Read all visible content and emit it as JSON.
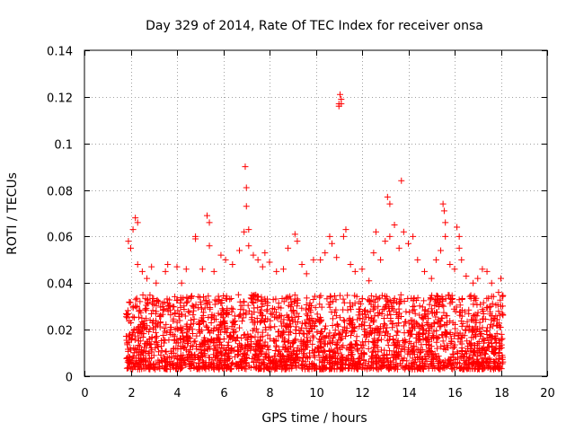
{
  "chart_data": {
    "type": "scatter",
    "title": "Day 329 of 2014, Rate Of TEC Index for receiver onsa",
    "xlabel": "GPS time / hours",
    "ylabel": "ROTI / TECUs",
    "xlim": [
      0,
      20
    ],
    "ylim": [
      0,
      0.14
    ],
    "xticks": [
      "0",
      "2",
      "4",
      "6",
      "8",
      "10",
      "12",
      "14",
      "16",
      "18",
      "20"
    ],
    "yticks": [
      "0",
      "0.02",
      "0.04",
      "0.06",
      "0.08",
      "0.1",
      "0.12",
      "0.14"
    ],
    "grid": true,
    "marker": "plus",
    "color": "#ff0000",
    "x_range_of_data": [
      1.8,
      18.1
    ],
    "baseline_band": [
      0.003,
      0.035
    ],
    "spikes": [
      {
        "x": 1.9,
        "y": 0.058
      },
      {
        "x": 2.0,
        "y": 0.055
      },
      {
        "x": 2.1,
        "y": 0.063
      },
      {
        "x": 2.2,
        "y": 0.068
      },
      {
        "x": 2.3,
        "y": 0.066
      },
      {
        "x": 2.3,
        "y": 0.048
      },
      {
        "x": 2.5,
        "y": 0.045
      },
      {
        "x": 2.7,
        "y": 0.042
      },
      {
        "x": 2.9,
        "y": 0.047
      },
      {
        "x": 3.1,
        "y": 0.04
      },
      {
        "x": 3.5,
        "y": 0.045
      },
      {
        "x": 3.6,
        "y": 0.048
      },
      {
        "x": 4.0,
        "y": 0.047
      },
      {
        "x": 4.2,
        "y": 0.04
      },
      {
        "x": 4.4,
        "y": 0.046
      },
      {
        "x": 4.8,
        "y": 0.06
      },
      {
        "x": 4.8,
        "y": 0.059
      },
      {
        "x": 5.1,
        "y": 0.046
      },
      {
        "x": 5.3,
        "y": 0.069
      },
      {
        "x": 5.4,
        "y": 0.066
      },
      {
        "x": 5.4,
        "y": 0.056
      },
      {
        "x": 5.6,
        "y": 0.045
      },
      {
        "x": 5.9,
        "y": 0.052
      },
      {
        "x": 6.1,
        "y": 0.05
      },
      {
        "x": 6.4,
        "y": 0.048
      },
      {
        "x": 6.7,
        "y": 0.054
      },
      {
        "x": 6.9,
        "y": 0.062
      },
      {
        "x": 6.95,
        "y": 0.09
      },
      {
        "x": 7.0,
        "y": 0.081
      },
      {
        "x": 7.0,
        "y": 0.073
      },
      {
        "x": 7.1,
        "y": 0.063
      },
      {
        "x": 7.1,
        "y": 0.056
      },
      {
        "x": 7.3,
        "y": 0.052
      },
      {
        "x": 7.5,
        "y": 0.05
      },
      {
        "x": 7.7,
        "y": 0.047
      },
      {
        "x": 7.8,
        "y": 0.053
      },
      {
        "x": 8.0,
        "y": 0.049
      },
      {
        "x": 8.3,
        "y": 0.045
      },
      {
        "x": 8.6,
        "y": 0.046
      },
      {
        "x": 8.8,
        "y": 0.055
      },
      {
        "x": 9.1,
        "y": 0.061
      },
      {
        "x": 9.2,
        "y": 0.058
      },
      {
        "x": 9.4,
        "y": 0.048
      },
      {
        "x": 9.6,
        "y": 0.044
      },
      {
        "x": 9.9,
        "y": 0.05
      },
      {
        "x": 10.2,
        "y": 0.05
      },
      {
        "x": 10.4,
        "y": 0.053
      },
      {
        "x": 10.6,
        "y": 0.06
      },
      {
        "x": 10.7,
        "y": 0.057
      },
      {
        "x": 10.9,
        "y": 0.051
      },
      {
        "x": 11.0,
        "y": 0.117
      },
      {
        "x": 11.0,
        "y": 0.116
      },
      {
        "x": 11.05,
        "y": 0.121
      },
      {
        "x": 11.1,
        "y": 0.119
      },
      {
        "x": 11.1,
        "y": 0.117
      },
      {
        "x": 11.2,
        "y": 0.06
      },
      {
        "x": 11.3,
        "y": 0.063
      },
      {
        "x": 11.5,
        "y": 0.048
      },
      {
        "x": 11.7,
        "y": 0.045
      },
      {
        "x": 12.0,
        "y": 0.046
      },
      {
        "x": 12.3,
        "y": 0.041
      },
      {
        "x": 12.5,
        "y": 0.053
      },
      {
        "x": 12.6,
        "y": 0.062
      },
      {
        "x": 12.8,
        "y": 0.05
      },
      {
        "x": 13.0,
        "y": 0.058
      },
      {
        "x": 13.1,
        "y": 0.077
      },
      {
        "x": 13.2,
        "y": 0.074
      },
      {
        "x": 13.2,
        "y": 0.06
      },
      {
        "x": 13.4,
        "y": 0.065
      },
      {
        "x": 13.6,
        "y": 0.055
      },
      {
        "x": 13.7,
        "y": 0.084
      },
      {
        "x": 13.8,
        "y": 0.062
      },
      {
        "x": 14.0,
        "y": 0.057
      },
      {
        "x": 14.2,
        "y": 0.06
      },
      {
        "x": 14.4,
        "y": 0.05
      },
      {
        "x": 14.7,
        "y": 0.045
      },
      {
        "x": 15.0,
        "y": 0.042
      },
      {
        "x": 15.2,
        "y": 0.05
      },
      {
        "x": 15.4,
        "y": 0.054
      },
      {
        "x": 15.5,
        "y": 0.074
      },
      {
        "x": 15.55,
        "y": 0.071
      },
      {
        "x": 15.6,
        "y": 0.066
      },
      {
        "x": 15.6,
        "y": 0.06
      },
      {
        "x": 15.8,
        "y": 0.048
      },
      {
        "x": 16.0,
        "y": 0.046
      },
      {
        "x": 16.1,
        "y": 0.064
      },
      {
        "x": 16.2,
        "y": 0.06
      },
      {
        "x": 16.2,
        "y": 0.055
      },
      {
        "x": 16.3,
        "y": 0.05
      },
      {
        "x": 16.5,
        "y": 0.043
      },
      {
        "x": 16.8,
        "y": 0.04
      },
      {
        "x": 17.0,
        "y": 0.042
      },
      {
        "x": 17.2,
        "y": 0.046
      },
      {
        "x": 17.4,
        "y": 0.045
      },
      {
        "x": 17.6,
        "y": 0.04
      },
      {
        "x": 17.9,
        "y": 0.036
      },
      {
        "x": 18.0,
        "y": 0.042
      },
      {
        "x": 18.0,
        "y": 0.03
      }
    ]
  }
}
